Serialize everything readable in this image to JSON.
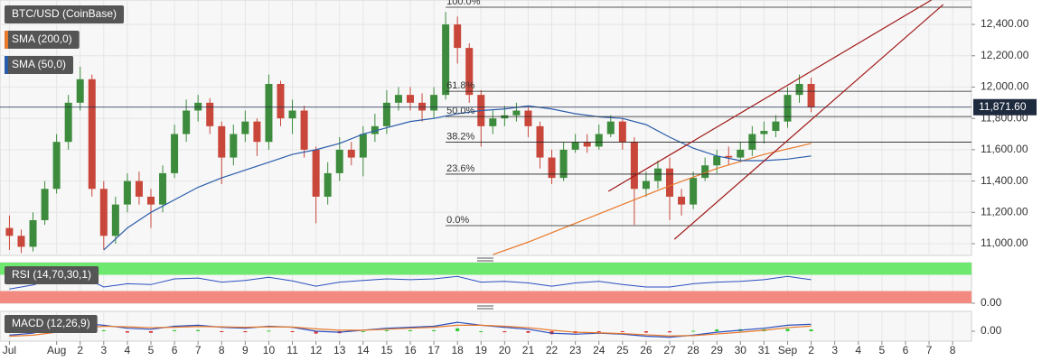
{
  "chart_data": [
    {
      "type": "candlestick",
      "title": "BTC/USD (CoinBase)",
      "x": [
        -1,
        -0.5,
        0,
        0.5,
        1,
        1.5,
        2,
        2.5,
        3,
        3.5,
        4,
        4.5,
        5,
        5.5,
        6,
        6.5,
        7,
        7.5,
        8,
        8.5,
        9,
        9.5,
        10,
        10.5,
        11,
        11.5,
        12,
        12.5,
        13,
        13.5,
        14,
        14.5,
        15,
        15.5,
        16,
        16.5,
        17,
        17.5,
        18,
        18.5,
        19,
        19.5,
        20,
        20.5,
        21,
        21.5,
        22,
        22.5,
        23,
        23.5,
        24,
        24.5,
        25,
        25.5,
        26,
        26.5,
        27,
        27.5,
        28,
        28.5,
        29,
        29.5,
        30,
        30.5,
        31,
        31.5,
        32,
        32.5,
        33
      ],
      "open": [
        11100,
        11050,
        10980,
        11150,
        11350,
        11650,
        11900,
        12050,
        11350,
        11050,
        11250,
        11400,
        11300,
        11250,
        11450,
        11700,
        11850,
        11900,
        11750,
        11550,
        11700,
        11780,
        11650,
        12020,
        11800,
        11850,
        11600,
        11300,
        11450,
        11600,
        11550,
        11700,
        11750,
        11900,
        11950,
        11900,
        11850,
        11950,
        12400,
        12250,
        11950,
        11750,
        11800,
        11820,
        11850,
        11750,
        11550,
        11420,
        11600,
        11650,
        11620,
        11700,
        11780,
        11650,
        11350,
        11400,
        11480,
        11300,
        11250,
        11420,
        11500,
        11560,
        11550,
        11600,
        11700,
        11720,
        11780,
        11950,
        12020
      ],
      "high": [
        11180,
        11090,
        11200,
        11400,
        11700,
        11950,
        12130,
        12080,
        11400,
        11300,
        11450,
        11460,
        11350,
        11500,
        11760,
        11920,
        11950,
        11930,
        11780,
        11760,
        11850,
        11800,
        12080,
        12040,
        11920,
        11880,
        11620,
        11520,
        11680,
        11650,
        11750,
        11830,
        11980,
        12000,
        12000,
        11960,
        12000,
        12480,
        12450,
        12280,
        11980,
        11850,
        11880,
        11900,
        11870,
        11780,
        11600,
        11650,
        11700,
        11700,
        11760,
        11820,
        11800,
        11680,
        11460,
        11530,
        11550,
        11350,
        11460,
        11550,
        11600,
        11620,
        11650,
        11750,
        11780,
        11820,
        12000,
        12080,
        12060
      ],
      "low": [
        10960,
        10940,
        10950,
        11120,
        11320,
        11600,
        11850,
        11300,
        10960,
        11000,
        11200,
        11250,
        11100,
        11200,
        11420,
        11650,
        11780,
        11700,
        11380,
        11500,
        11650,
        11560,
        11600,
        11750,
        11700,
        11550,
        11130,
        11250,
        11400,
        11500,
        11430,
        11650,
        11700,
        11850,
        11850,
        11780,
        11800,
        11920,
        12150,
        11900,
        11620,
        11700,
        11750,
        11780,
        11680,
        11480,
        11380,
        11400,
        11580,
        11580,
        11600,
        11680,
        11600,
        11120,
        11300,
        11350,
        11150,
        11180,
        11220,
        11400,
        11450,
        11500,
        11520,
        11560,
        11640,
        11680,
        11740,
        11900,
        11840
      ],
      "close": [
        11050,
        10980,
        11150,
        11350,
        11650,
        11900,
        12050,
        11350,
        11050,
        11250,
        11400,
        11300,
        11250,
        11450,
        11700,
        11850,
        11900,
        11750,
        11550,
        11700,
        11780,
        11650,
        12020,
        11800,
        11850,
        11600,
        11300,
        11450,
        11600,
        11550,
        11700,
        11750,
        11900,
        11950,
        11900,
        11850,
        11950,
        12400,
        12250,
        11950,
        11750,
        11800,
        11820,
        11850,
        11750,
        11550,
        11420,
        11600,
        11650,
        11620,
        11700,
        11780,
        11650,
        11350,
        11400,
        11480,
        11300,
        11250,
        11420,
        11500,
        11560,
        11550,
        11600,
        11700,
        11720,
        11780,
        11950,
        12020,
        11871.6
      ],
      "up_color": "#3d8c3d",
      "down_color": "#c8473a",
      "series": [
        {
          "name": "SMA (200,0)",
          "color": "#e8782a",
          "x": [
            19.5,
            21,
            23,
            25,
            27,
            29,
            31,
            33
          ],
          "values": [
            10930,
            11010,
            11130,
            11250,
            11370,
            11480,
            11570,
            11640
          ]
        },
        {
          "name": "SMA (50,0)",
          "color": "#2a5caa",
          "x": [
            3,
            4,
            5,
            6,
            7,
            8,
            9,
            10,
            11,
            12,
            13,
            14,
            15,
            16,
            17,
            18,
            19,
            20,
            21,
            22,
            23,
            24,
            25,
            26,
            27,
            28,
            29,
            30,
            31,
            32,
            33
          ],
          "values": [
            10960,
            11100,
            11200,
            11280,
            11360,
            11420,
            11470,
            11520,
            11570,
            11600,
            11640,
            11700,
            11740,
            11780,
            11800,
            11830,
            11850,
            11860,
            11880,
            11860,
            11830,
            11810,
            11800,
            11760,
            11680,
            11610,
            11560,
            11530,
            11530,
            11540,
            11560
          ]
        }
      ],
      "fib": {
        "x_start": 17.5,
        "levels": [
          {
            "label": "100.0%",
            "value": 12510
          },
          {
            "label": "61.8%",
            "value": 11973
          },
          {
            "label": "50.0%",
            "value": 11812
          },
          {
            "label": "38.2%",
            "value": 11648
          },
          {
            "label": "23.6%",
            "value": 11444
          },
          {
            "label": "0.0%",
            "value": 11115
          }
        ]
      },
      "trendline_color": "#a01818",
      "trendlines": [
        {
          "x": [
            24.4,
            38.1
          ],
          "y": [
            11334,
            12556
          ]
        },
        {
          "x": [
            27.2,
            38.6
          ],
          "y": [
            11028,
            12527
          ]
        }
      ],
      "last_price": {
        "values": [
          11871.6
        ],
        "value_labels": [
          "11,871.60"
        ]
      },
      "xlim": [
        -1.4,
        39.8
      ],
      "ylim": [
        10925,
        12556
      ],
      "xticks": [
        {
          "value": -1,
          "label": "Jul"
        },
        {
          "value": 1,
          "label": "Aug"
        },
        2,
        3,
        4,
        5,
        6,
        7,
        8,
        9,
        10,
        11,
        12,
        13,
        14,
        15,
        16,
        17,
        18,
        19,
        20,
        21,
        22,
        23,
        24,
        25,
        26,
        27,
        28,
        29,
        30,
        31,
        {
          "value": 32,
          "label": "Sep"
        },
        {
          "value": 33,
          "label": "2"
        },
        {
          "value": 34,
          "label": "3"
        },
        {
          "value": 35,
          "label": "4"
        },
        {
          "value": 36,
          "label": "5"
        },
        {
          "value": 37,
          "label": "6"
        },
        {
          "value": 38,
          "label": "7"
        },
        {
          "value": 39,
          "label": "8"
        }
      ],
      "yticks": [
        {
          "value": 11000,
          "label": "11,000.00"
        },
        {
          "value": 11200,
          "label": "11,200.00"
        },
        {
          "value": 11400,
          "label": "11,400.00"
        },
        {
          "value": 11600,
          "label": "11,600.00"
        },
        {
          "value": 11800,
          "label": "11,800.00"
        },
        {
          "value": 12000,
          "label": "12,000.00"
        },
        {
          "value": 12200,
          "label": "12,200.00"
        },
        {
          "value": 12400,
          "label": "12,400.00"
        }
      ],
      "grid": true
    },
    {
      "type": "line",
      "title": "RSI (14,70,30,1)",
      "x": [
        -1,
        0,
        1,
        2,
        3,
        4,
        5,
        6,
        7,
        8,
        9,
        10,
        11,
        12,
        13,
        14,
        15,
        16,
        17,
        18,
        19,
        20,
        21,
        22,
        23,
        24,
        25,
        26,
        27,
        28,
        29,
        30,
        31,
        32,
        33
      ],
      "bands": [
        {
          "from": 70,
          "to": 100,
          "color": "#6ee86e"
        },
        {
          "from": 0,
          "to": 30,
          "color": "#f28a82"
        }
      ],
      "series": [
        {
          "color": "#2a4fc0",
          "values": [
            35,
            45,
            62,
            68,
            40,
            48,
            46,
            60,
            62,
            52,
            56,
            64,
            55,
            42,
            52,
            56,
            60,
            58,
            60,
            66,
            52,
            54,
            50,
            42,
            50,
            54,
            46,
            40,
            40,
            48,
            52,
            54,
            58,
            66,
            58
          ]
        }
      ],
      "ylim": [
        0,
        100
      ],
      "yticks": [
        {
          "value": 0,
          "label": "0.00"
        }
      ]
    },
    {
      "type": "macd",
      "title": "MACD (12,26,9)",
      "x": [
        -1,
        0,
        1,
        2,
        3,
        4,
        5,
        6,
        7,
        8,
        9,
        10,
        11,
        12,
        13,
        14,
        15,
        16,
        17,
        18,
        19,
        20,
        21,
        22,
        23,
        24,
        25,
        26,
        27,
        28,
        29,
        30,
        31,
        32,
        33
      ],
      "series": [
        {
          "color": "#2a4fc0",
          "values": [
            -20,
            -10,
            20,
            40,
            30,
            15,
            10,
            25,
            30,
            20,
            15,
            25,
            20,
            0,
            -5,
            5,
            15,
            20,
            25,
            45,
            30,
            20,
            10,
            -10,
            -15,
            -10,
            -15,
            -25,
            -30,
            -20,
            -5,
            5,
            15,
            30,
            35
          ]
        },
        {
          "color": "#e8782a",
          "values": [
            -25,
            -20,
            -5,
            15,
            25,
            22,
            18,
            20,
            24,
            22,
            20,
            22,
            21,
            12,
            5,
            5,
            10,
            15,
            20,
            30,
            30,
            25,
            18,
            5,
            -5,
            -8,
            -12,
            -18,
            -24,
            -22,
            -14,
            -5,
            5,
            18,
            26
          ]
        }
      ],
      "histogram": {
        "up_color": "#33cc33",
        "down_color": "#dd3333",
        "values": [
          5,
          10,
          25,
          25,
          5,
          -7,
          -8,
          5,
          6,
          -2,
          -5,
          3,
          -1,
          -12,
          -10,
          0,
          5,
          5,
          5,
          15,
          0,
          -5,
          -8,
          -15,
          -10,
          -2,
          -3,
          -7,
          -6,
          2,
          9,
          10,
          10,
          12,
          9
        ]
      },
      "ylim": [
        -50,
        100
      ],
      "yticks": [
        {
          "value": 0,
          "label": "0.00"
        }
      ]
    }
  ]
}
